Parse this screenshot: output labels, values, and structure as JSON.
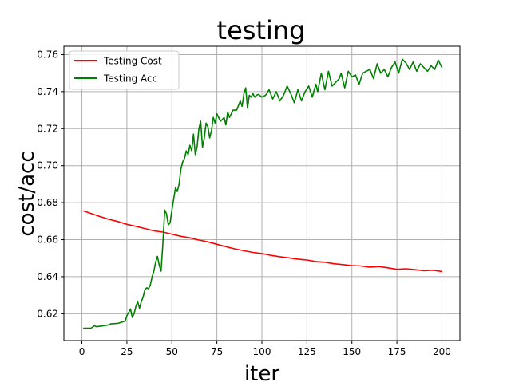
{
  "chart_data": {
    "type": "line",
    "title": "testing",
    "xlabel": "iter",
    "ylabel": "cost/acc",
    "xlim": [
      -10,
      210
    ],
    "ylim": [
      0.6055,
      0.7645
    ],
    "xticks": [
      0,
      25,
      50,
      75,
      100,
      125,
      150,
      175,
      200
    ],
    "yticks": [
      0.62,
      0.64,
      0.66,
      0.68,
      0.7,
      0.72,
      0.74,
      0.76
    ],
    "grid": true,
    "legend_position": "top-left",
    "series": [
      {
        "name": "Testing Cost",
        "color": "#ff0000",
        "x": [
          1,
          5,
          10,
          15,
          20,
          25,
          30,
          35,
          40,
          45,
          50,
          55,
          60,
          65,
          70,
          75,
          80,
          85,
          90,
          95,
          100,
          105,
          110,
          115,
          120,
          125,
          130,
          135,
          140,
          145,
          150,
          155,
          160,
          165,
          170,
          175,
          180,
          185,
          190,
          195,
          200
        ],
        "values": [
          0.6755,
          0.6742,
          0.6725,
          0.671,
          0.6698,
          0.6683,
          0.6672,
          0.666,
          0.6648,
          0.6641,
          0.663,
          0.6618,
          0.661,
          0.6598,
          0.6588,
          0.6575,
          0.6562,
          0.655,
          0.654,
          0.6531,
          0.6525,
          0.6515,
          0.6508,
          0.6502,
          0.6495,
          0.649,
          0.6482,
          0.6478,
          0.647,
          0.6465,
          0.646,
          0.6458,
          0.6452,
          0.6455,
          0.6448,
          0.644,
          0.6443,
          0.6438,
          0.6432,
          0.6435,
          0.6428
        ]
      },
      {
        "name": "Testing Acc",
        "color": "#008000",
        "x": [
          1,
          5,
          6,
          7,
          8,
          10,
          15,
          16,
          20,
          24,
          25,
          27,
          28,
          29,
          30,
          31,
          32,
          33,
          34,
          35,
          36,
          37,
          38,
          39,
          40,
          41,
          42,
          43,
          44,
          45,
          46,
          47,
          48,
          49,
          50,
          51,
          52,
          53,
          54,
          55,
          56,
          57,
          58,
          59,
          60,
          61,
          62,
          63,
          64,
          65,
          66,
          67,
          68,
          69,
          70,
          71,
          72,
          73,
          74,
          75,
          77,
          79,
          80,
          81,
          82,
          84,
          86,
          88,
          89,
          90,
          91,
          92,
          93,
          94,
          95,
          96,
          97,
          98,
          100,
          102,
          104,
          106,
          108,
          110,
          112,
          114,
          116,
          118,
          120,
          122,
          124,
          126,
          128,
          130,
          131,
          133,
          135,
          137,
          139,
          141,
          143,
          144,
          146,
          148,
          150,
          152,
          154,
          156,
          158,
          160,
          162,
          164,
          166,
          168,
          170,
          172,
          174,
          176,
          178,
          180,
          182,
          184,
          186,
          188,
          190,
          192,
          194,
          196,
          198,
          200
        ],
        "values": [
          0.6122,
          0.6122,
          0.6128,
          0.6135,
          0.613,
          0.6132,
          0.614,
          0.6145,
          0.6148,
          0.616,
          0.619,
          0.6225,
          0.618,
          0.62,
          0.624,
          0.6265,
          0.623,
          0.6265,
          0.629,
          0.633,
          0.634,
          0.6335,
          0.6355,
          0.64,
          0.643,
          0.648,
          0.651,
          0.646,
          0.643,
          0.658,
          0.676,
          0.674,
          0.668,
          0.669,
          0.676,
          0.682,
          0.688,
          0.686,
          0.69,
          0.698,
          0.702,
          0.704,
          0.708,
          0.706,
          0.711,
          0.708,
          0.717,
          0.706,
          0.71,
          0.72,
          0.724,
          0.71,
          0.715,
          0.723,
          0.721,
          0.715,
          0.719,
          0.726,
          0.723,
          0.728,
          0.724,
          0.726,
          0.722,
          0.729,
          0.726,
          0.73,
          0.73,
          0.735,
          0.732,
          0.739,
          0.742,
          0.731,
          0.738,
          0.737,
          0.739,
          0.737,
          0.738,
          0.7385,
          0.737,
          0.738,
          0.741,
          0.736,
          0.74,
          0.735,
          0.738,
          0.743,
          0.739,
          0.734,
          0.741,
          0.735,
          0.74,
          0.743,
          0.737,
          0.744,
          0.74,
          0.75,
          0.741,
          0.751,
          0.743,
          0.745,
          0.747,
          0.75,
          0.742,
          0.751,
          0.748,
          0.749,
          0.744,
          0.75,
          0.751,
          0.752,
          0.747,
          0.755,
          0.75,
          0.752,
          0.748,
          0.753,
          0.756,
          0.75,
          0.7575,
          0.7555,
          0.752,
          0.756,
          0.751,
          0.755,
          0.753,
          0.751,
          0.754,
          0.752,
          0.757,
          0.753
        ]
      }
    ]
  }
}
